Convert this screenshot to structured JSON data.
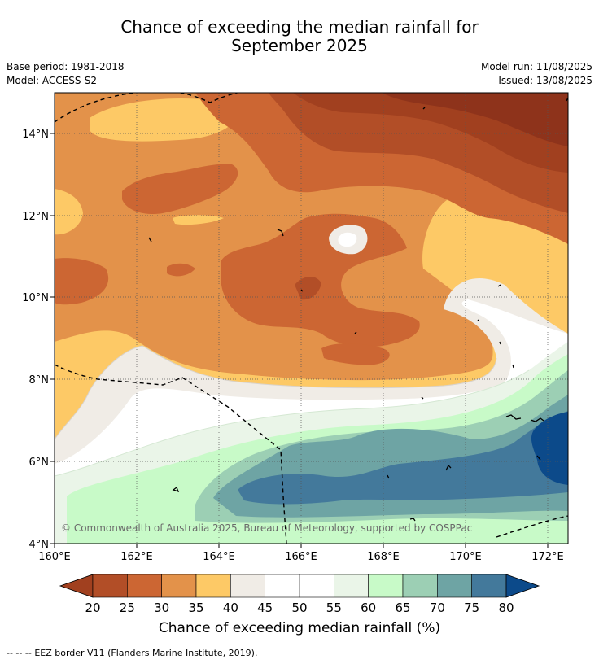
{
  "title": {
    "line1": "Chance of exceeding the median rainfall for",
    "line2": "September 2025"
  },
  "meta": {
    "base_period": "Base period: 1981-2018",
    "model": "Model: ACCESS-S2",
    "model_run": "Model run: 11/08/2025",
    "issued": "Issued: 13/08/2025"
  },
  "map": {
    "copyright": "© Commonwealth of Australia 2025, Bureau of Meteorology, supported by COSPPac",
    "lon_ticks": [
      "160°E",
      "162°E",
      "164°E",
      "166°E",
      "168°E",
      "170°E",
      "172°E"
    ],
    "lat_ticks": [
      "4°N",
      "6°N",
      "8°N",
      "10°N",
      "12°N",
      "14°N"
    ],
    "lon_range": [
      160,
      172.5
    ],
    "lat_range": [
      4,
      15
    ],
    "frame_color": "#000000",
    "gridlines": true
  },
  "colorbar": {
    "label": "Chance of exceeding median rainfall (%)",
    "ticks": [
      "20",
      "25",
      "30",
      "35",
      "40",
      "45",
      "50",
      "55",
      "60",
      "65",
      "70",
      "75",
      "80"
    ],
    "under_color": "#a1401f",
    "over_color": "#0c4a8a",
    "colors": [
      "#b24e27",
      "#cc6633",
      "#e3924a",
      "#fdc966",
      "#f0ece6",
      "#ffffff",
      "#ffffff",
      "#eaf5e8",
      "#c8fac8",
      "#9ccfb4",
      "#6ea4a4",
      "#43799b"
    ]
  },
  "footer": {
    "legend_symbol": "-- -- --",
    "text": "EEZ border V11 (Flanders Marine Institute, 2019)."
  }
}
